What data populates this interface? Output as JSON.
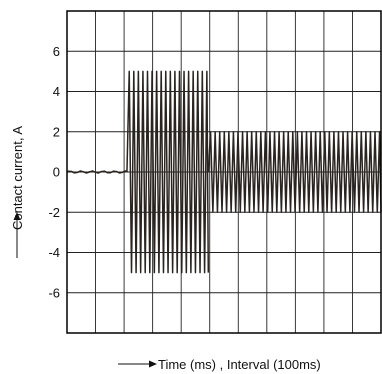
{
  "chart_data": {
    "type": "line",
    "xlabel": "Time (ms) , Interval (100ms)",
    "ylabel": "Contact current, A",
    "ylim": [
      -8,
      8
    ],
    "xlim": [
      0,
      11
    ],
    "y_ticks": [
      6,
      4,
      2,
      0,
      -2,
      -4,
      -6
    ],
    "grid": true,
    "x_divisions": 11,
    "series": [
      {
        "segments": [
          {
            "type": "flat",
            "x_start": 0.0,
            "x_end": 2.1,
            "amplitude": 0.05
          },
          {
            "type": "oscillation",
            "x_start": 2.1,
            "x_end": 4.95,
            "amplitude": 5.0,
            "period": 0.16
          },
          {
            "type": "oscillation",
            "x_start": 4.95,
            "x_end": 11.0,
            "amplitude": 2.0,
            "period": 0.16
          }
        ]
      }
    ],
    "colors": {
      "line": "#2a2420",
      "grid": "#222222",
      "frame": "#000000"
    }
  }
}
